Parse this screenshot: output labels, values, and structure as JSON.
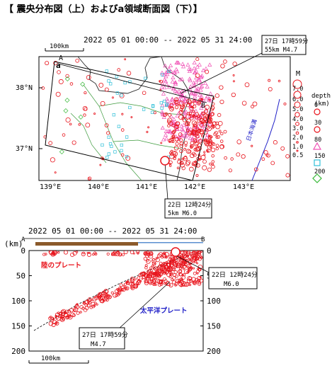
{
  "title": "【 震央分布図（上）およびa領域断面図（下）】",
  "period": "2022  05  01  00:00   --   2022  05  31  24:00",
  "map": {
    "scale_label": "100km",
    "lat_labels": [
      "38°N",
      "37°N"
    ],
    "lon_labels": [
      "139°E",
      "140°E",
      "141°E",
      "142°E",
      "143°E"
    ],
    "section_label_a": "a",
    "section_label_A": "A",
    "section_label_B": "B",
    "trench_label": "日本海溝",
    "annotation_1": {
      "line1": "27日  17時59分",
      "line2": "55km   M4.7"
    },
    "annotation_2": {
      "line1": "22日  12時24分",
      "line2": "5km   M6.0"
    }
  },
  "legend": {
    "m_title": "M",
    "m_values": [
      "7.0",
      "6.0",
      "5.0",
      "4.0",
      "3.0",
      "2.0",
      "1.0",
      "0.5"
    ],
    "depth_title": "depth",
    "depth_unit": "(km)",
    "depth_values": [
      "0",
      "30",
      "80",
      "150",
      "200"
    ],
    "depth_colors": [
      "#e8141c",
      "#e8141c",
      "#f050b4",
      "#30c0d8",
      "#38b838"
    ]
  },
  "section": {
    "period": "2022  05  01  00:00   --   2022  05  31  24:00",
    "y_unit": "(km)",
    "left_end": "A",
    "right_end": "B",
    "y_ticks": [
      "0",
      "50",
      "100",
      "150",
      "200"
    ],
    "plate_eurasia": "陸のプレート",
    "plate_pacific": "太平洋プレート",
    "annotation_1": {
      "line1": "22日  12時24分",
      "line2": "M6.0"
    },
    "annotation_2": {
      "line1": "27日  17時59分",
      "line2": "M4.7"
    },
    "scale_label": "100km"
  }
}
